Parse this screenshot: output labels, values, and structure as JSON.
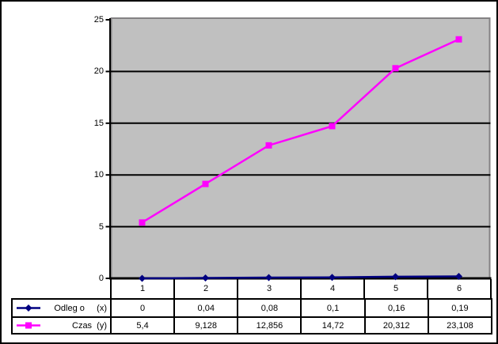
{
  "window": {
    "background": "#FFFFFF",
    "frame_border_color": "#000000"
  },
  "chart_data": {
    "type": "line",
    "title": "",
    "xlabel": "",
    "ylabel": "",
    "categories": [
      "1",
      "2",
      "3",
      "4",
      "5",
      "6"
    ],
    "series": [
      {
        "name": "Odleg o (x)",
        "legend_label": "Odleg o     (x)",
        "marker": "diamond",
        "color": "#000080",
        "values": [
          0,
          0.04,
          0.08,
          0.1,
          0.16,
          0.19
        ]
      },
      {
        "name": "Czas (y)",
        "legend_label": "Czas  (y)",
        "marker": "square",
        "color": "#FF00FF",
        "values": [
          5.4,
          9.128,
          12.856,
          14.72,
          20.312,
          23.108
        ]
      }
    ],
    "ylim": [
      0,
      25
    ],
    "yticks": [
      0,
      5,
      10,
      15,
      20,
      25
    ],
    "ytick_labels": [
      "0",
      "5",
      "10",
      "15",
      "20",
      "25"
    ],
    "grid": true,
    "gridline_color": "#000000",
    "axis_color": "#000000",
    "plot_background": "#C0C0C0",
    "plot_border_color": "#848284",
    "legend_position": "data-table-left",
    "data_table_shown": true
  },
  "data_table": {
    "header_row": [
      "1",
      "2",
      "3",
      "4",
      "5",
      "6"
    ],
    "rows": [
      {
        "legend": "Odleg o (x)",
        "cells": [
          "0",
          "0,04",
          "0,08",
          "0,1",
          "0,16",
          "0,19"
        ]
      },
      {
        "legend": "Czas (y)",
        "cells": [
          "5,4",
          "9,128",
          "12,856",
          "14,72",
          "20,312",
          "23,108"
        ]
      }
    ]
  }
}
